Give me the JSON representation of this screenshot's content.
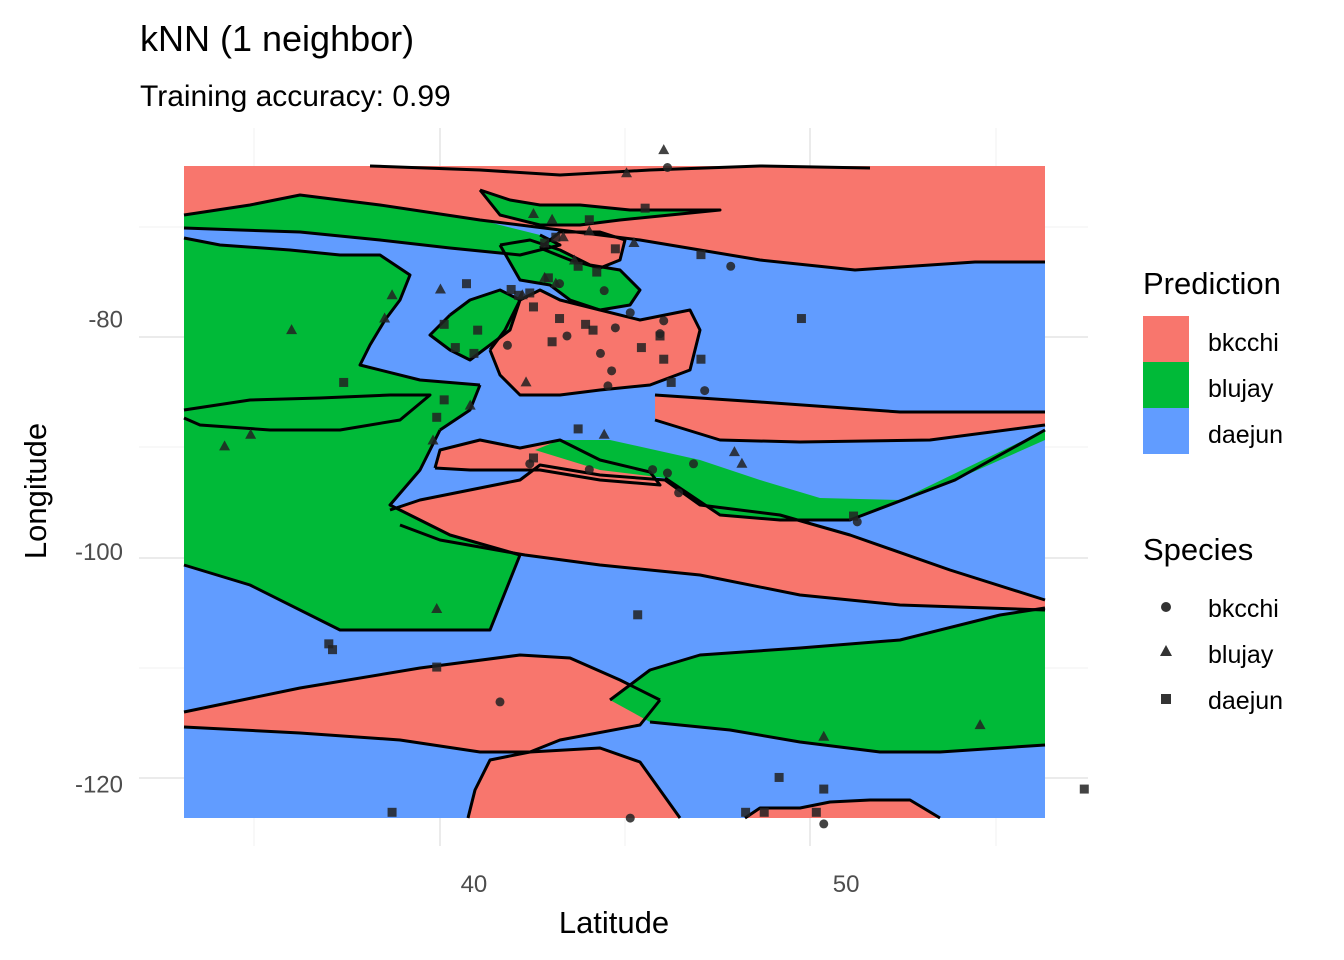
{
  "chart_data": {
    "type": "scatter",
    "title": "kNN (1 neighbor)",
    "subtitle": "Training accuracy: 0.99",
    "xlabel": "Latitude",
    "ylabel": "Longitude",
    "xlim": [
      31,
      56.5
    ],
    "ylim": [
      -125.4,
      -63.6
    ],
    "x_ticks": [
      40,
      50
    ],
    "y_ticks": [
      -80,
      -100,
      -120
    ],
    "grid": true,
    "legend_position": "right",
    "fill_legend": {
      "title": "Prediction",
      "entries": [
        {
          "label": "bkcchi",
          "color": "#F8766D"
        },
        {
          "label": "blujay",
          "color": "#00BA38"
        },
        {
          "label": "daejun",
          "color": "#619CFF"
        }
      ]
    },
    "shape_legend": {
      "title": "Species",
      "entries": [
        {
          "label": "bkcchi",
          "shape": "circle"
        },
        {
          "label": "blujay",
          "shape": "triangle"
        },
        {
          "label": "daejun",
          "shape": "square"
        }
      ]
    },
    "series": [
      {
        "name": "bkcchi",
        "shape": "circle",
        "x": [
          45.2,
          46.9,
          42.3,
          43.5,
          44.2,
          43.8,
          42.5,
          43.4,
          40.9,
          45.1,
          45.0,
          46.2,
          43.7,
          43.6,
          45.9,
          41.5,
          43.1,
          44.8,
          45.2,
          45.5,
          40.7,
          44.2,
          49.4,
          50.3
        ],
        "y": [
          -67.0,
          -75.5,
          -77.0,
          -77.6,
          -79.5,
          -80.8,
          -81.5,
          -83.0,
          -82.3,
          -80.2,
          -81.3,
          -86.2,
          -84.5,
          -85.8,
          -92.5,
          -92.5,
          -93.0,
          -93.0,
          -93.3,
          -95.0,
          -113.0,
          -123.0,
          -123.5,
          -97.5
        ]
      },
      {
        "name": "blujay",
        "shape": "triangle",
        "x": [
          45.1,
          44.1,
          42.1,
          41.6,
          42.4,
          43.1,
          44.3,
          42.7,
          41.9,
          42.2,
          41.3,
          39.1,
          37.8,
          37.6,
          35.1,
          34.0,
          33.3,
          39.9,
          38.9,
          41.4,
          43.5,
          47.0,
          47.2,
          39.0,
          49.4,
          53.6
        ],
        "y": [
          -65.5,
          -67.5,
          -71.5,
          -71.0,
          -73.0,
          -72.5,
          -73.5,
          -75.0,
          -76.5,
          -77.0,
          -78.0,
          -77.5,
          -78.0,
          -80.0,
          -81.0,
          -90.0,
          -91.0,
          -87.5,
          -90.5,
          -85.5,
          -90.0,
          -91.5,
          -92.5,
          -105.0,
          -116.0,
          -115.0
        ]
      },
      {
        "name": "daejun",
        "shape": "square",
        "x": [
          44.6,
          46.1,
          42.2,
          41.9,
          43.1,
          43.8,
          42.8,
          42.0,
          43.3,
          41.5,
          41.2,
          41.0,
          41.6,
          42.3,
          43.0,
          43.2,
          44.5,
          45.0,
          48.8,
          45.1,
          46.1,
          45.3,
          39.5,
          42.1,
          40.0,
          36.5,
          39.8,
          39.2,
          39.2,
          40.1,
          39.0,
          41.6,
          42.8,
          50.2,
          44.4,
          36.1,
          36.2,
          39.0,
          37.8,
          48.2,
          47.8,
          49.2,
          49.4,
          56.4,
          47.3
        ],
        "y": [
          -70.5,
          -74.5,
          -73.0,
          -73.5,
          -71.5,
          -74.0,
          -75.5,
          -76.5,
          -76.0,
          -77.8,
          -78.0,
          -77.5,
          -79.0,
          -80.0,
          -80.5,
          -81.0,
          -82.5,
          -81.5,
          -80.0,
          -83.5,
          -83.5,
          -85.5,
          -82.5,
          -82.0,
          -83.0,
          -85.5,
          -77.0,
          -87.0,
          -80.5,
          -81.0,
          -88.5,
          -92.0,
          -89.5,
          -97.0,
          -105.5,
          -108.0,
          -108.5,
          -110.0,
          -122.5,
          -119.5,
          -122.5,
          -122.5,
          -120.5,
          -120.5,
          -122.5
        ]
      }
    ]
  }
}
